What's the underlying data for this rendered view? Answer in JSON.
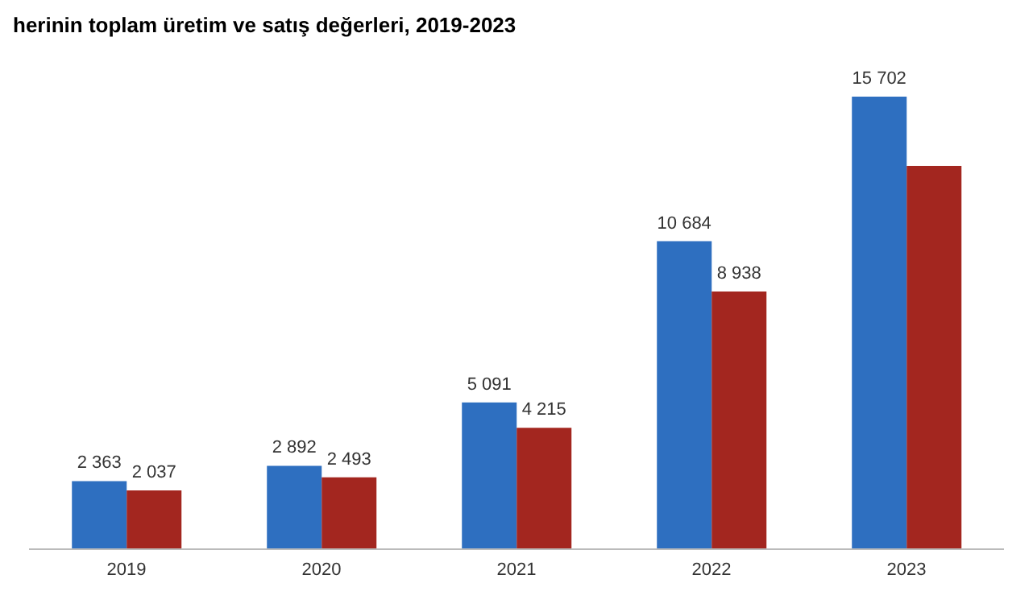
{
  "chart_data": {
    "type": "bar",
    "title": "herinin toplam üretim ve satış değerleri, 2019-2023",
    "categories": [
      "2019",
      "2020",
      "2021",
      "2022",
      "2023"
    ],
    "series": [
      {
        "color": "#2e6fc0",
        "values": [
          2363,
          2892,
          5091,
          10684,
          15702
        ],
        "value_labels": [
          "2 363",
          "2 892",
          "5 091",
          "10 684",
          "15 702"
        ]
      },
      {
        "color": "#a3261f",
        "values": [
          2037,
          2493,
          4215,
          8938,
          13300
        ],
        "value_labels": [
          "2 037",
          "2 493",
          "4 215",
          "8 938",
          null
        ]
      }
    ],
    "grid": false,
    "legend": false
  }
}
